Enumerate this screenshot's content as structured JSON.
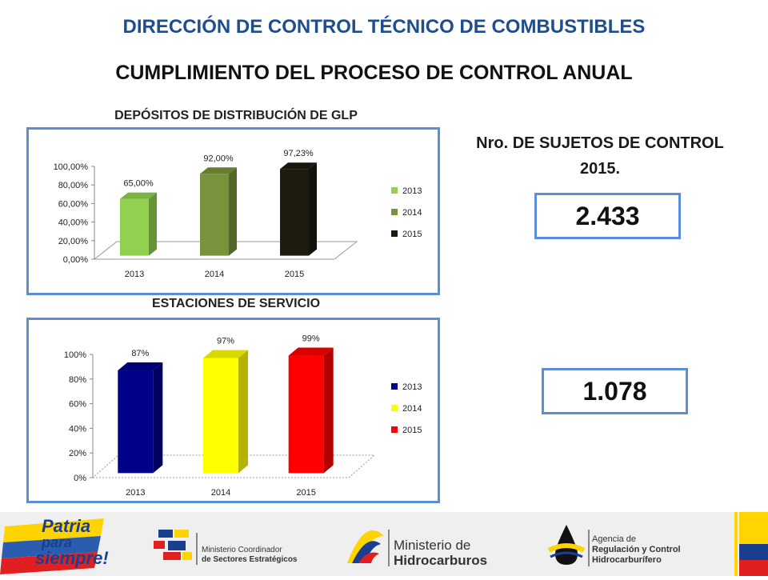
{
  "header": {
    "title": "DIRECCIÓN DE CONTROL TÉCNICO DE COMBUSTIBLES",
    "subtitle": "CUMPLIMIENTO DEL PROCESO DE CONTROL ANUAL"
  },
  "side": {
    "title_line1": "Nro. DE SUJETOS DE CONTROL",
    "title_line2": "2015.",
    "value_glp": "2.433",
    "value_es": "1.078"
  },
  "footer": {
    "patria_line1": "Patria",
    "patria_line2": "para",
    "patria_line3": "siempre!",
    "mcse_line1": "Ministerio Coordinador",
    "mcse_line2": "de Sectores Estratégicos",
    "mh_line1": "Ministerio de",
    "mh_line2": "Hidrocarburos",
    "arch_line1": "Agencia de",
    "arch_line2": "Regulación y Control",
    "arch_line3": "Hidrocarburífero"
  },
  "chart_data": [
    {
      "type": "bar",
      "title": "DEPÓSITOS DE DISTRIBUCIÓN DE GLP",
      "categories": [
        "2013",
        "2014",
        "2015"
      ],
      "values": [
        65.0,
        92.0,
        97.23
      ],
      "value_labels": [
        "65,00%",
        "92,00%",
        "97,23%"
      ],
      "ylim": [
        0,
        100
      ],
      "yticks": [
        "0,00%",
        "20,00%",
        "40,00%",
        "60,00%",
        "80,00%",
        "100,00%"
      ],
      "legend": [
        "2013",
        "2014",
        "2015"
      ],
      "legend_position": "right",
      "colors": [
        "#92d050",
        "#77933c",
        "#1d1b10"
      ],
      "three_d": true
    },
    {
      "type": "bar",
      "title": "ESTACIONES DE SERVICIO",
      "categories": [
        "2013",
        "2014",
        "2015"
      ],
      "values": [
        87,
        97,
        99
      ],
      "value_labels": [
        "87%",
        "97%",
        "99%"
      ],
      "ylim": [
        0,
        100
      ],
      "yticks": [
        "0%",
        "20%",
        "40%",
        "60%",
        "80%",
        "100%"
      ],
      "legend": [
        "2013",
        "2014",
        "2015"
      ],
      "legend_position": "right",
      "colors": [
        "#00008b",
        "#ffff00",
        "#ff0000"
      ],
      "three_d": true
    }
  ]
}
